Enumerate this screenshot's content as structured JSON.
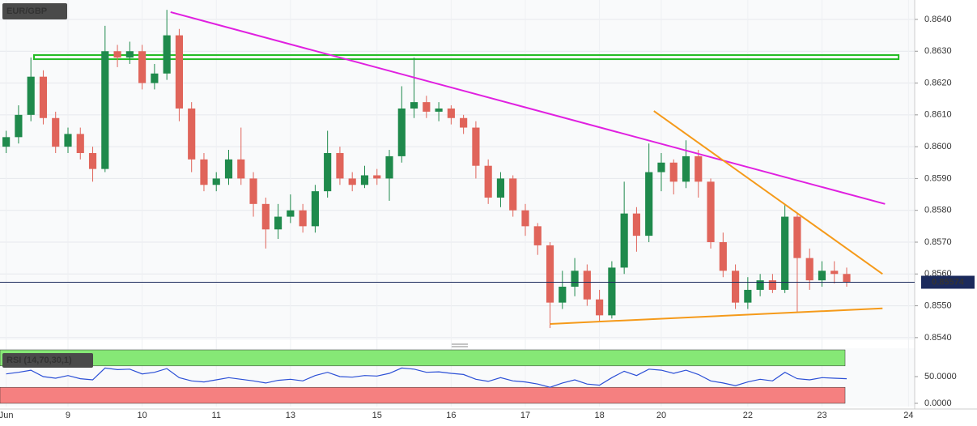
{
  "chart_data": {
    "type": "candlestick",
    "title": "EUR/GBP",
    "categories": [
      "Jun",
      null,
      null,
      null,
      null,
      "9",
      null,
      null,
      null,
      null,
      null,
      "10",
      null,
      null,
      null,
      null,
      null,
      "11",
      null,
      null,
      null,
      null,
      null,
      "13",
      null,
      null,
      null,
      null,
      null,
      null,
      "15",
      null,
      null,
      null,
      null,
      null,
      "16",
      null,
      null,
      null,
      null,
      null,
      "17",
      null,
      null,
      null,
      null,
      null,
      "18",
      null,
      null,
      null,
      null,
      "20",
      null,
      null,
      null,
      null,
      null,
      null,
      "22",
      null,
      null,
      null,
      null,
      null,
      "23",
      null,
      null,
      null,
      null,
      null,
      null,
      "24"
    ],
    "open": [
      0.86,
      0.8603,
      0.861,
      0.8622,
      0.8609,
      0.86,
      0.8604,
      0.8598,
      0.8593,
      0.863,
      0.8628,
      0.863,
      0.862,
      0.8623,
      0.8635,
      0.8612,
      0.8596,
      0.8588,
      0.859,
      0.8596,
      0.859,
      0.8582,
      0.8574,
      0.8578,
      0.858,
      0.8575,
      0.8586,
      0.8598,
      0.859,
      0.8588,
      0.8591,
      0.859,
      0.8597,
      0.8612,
      0.8614,
      0.8611,
      0.8612,
      0.8609,
      0.8606,
      0.8594,
      0.8584,
      0.859,
      0.858,
      0.8575,
      0.8569,
      0.8551,
      0.8556,
      0.8561,
      0.8552,
      0.8547,
      0.8562,
      0.8579,
      0.8572,
      0.8592,
      0.8595,
      0.8589,
      0.8597,
      0.8589,
      0.857,
      0.8561,
      0.8551,
      0.8555,
      0.8558,
      0.8555,
      0.8578,
      0.8565,
      0.8558,
      0.8561,
      0.856,
      null,
      null,
      null,
      null,
      null
    ],
    "high": [
      0.8605,
      0.8613,
      0.8628,
      0.8624,
      0.8611,
      0.8606,
      0.8606,
      0.86,
      0.8638,
      0.8632,
      0.8633,
      0.8632,
      0.8626,
      0.8643,
      0.8637,
      0.8614,
      0.8598,
      0.8592,
      0.8599,
      0.8606,
      0.8592,
      0.8584,
      0.8582,
      0.8585,
      0.8582,
      0.8588,
      0.8605,
      0.86,
      0.8592,
      0.8594,
      0.8593,
      0.8599,
      0.8619,
      0.8628,
      0.8616,
      0.8614,
      0.8613,
      0.861,
      0.8608,
      0.8596,
      0.8592,
      0.8591,
      0.8582,
      0.8576,
      0.857,
      0.8561,
      0.8565,
      0.8563,
      0.8555,
      0.8564,
      0.8589,
      0.8581,
      0.8601,
      0.8598,
      0.8596,
      0.8602,
      0.8599,
      0.859,
      0.8573,
      0.8563,
      0.8559,
      0.856,
      0.856,
      0.8582,
      0.8579,
      0.8568,
      0.8564,
      0.8564,
      0.8562,
      null,
      null,
      null,
      null,
      null
    ],
    "low": [
      0.8598,
      0.8601,
      0.8608,
      0.8607,
      0.8598,
      0.8598,
      0.8596,
      0.8589,
      0.8592,
      0.8625,
      0.8626,
      0.8618,
      0.8618,
      0.8621,
      0.8608,
      0.8592,
      0.8586,
      0.8586,
      0.8588,
      0.8588,
      0.8578,
      0.8568,
      0.8571,
      0.8576,
      0.8573,
      0.8573,
      0.8584,
      0.8588,
      0.8586,
      0.8587,
      0.8588,
      0.8583,
      0.8595,
      0.8609,
      0.8609,
      0.8608,
      0.8607,
      0.8604,
      0.859,
      0.8582,
      0.8581,
      0.8578,
      0.8572,
      0.8566,
      0.8543,
      0.8549,
      0.8553,
      0.855,
      0.8545,
      0.8546,
      0.856,
      0.8567,
      0.857,
      0.8586,
      0.8585,
      0.8587,
      0.8584,
      0.8568,
      0.8559,
      0.8549,
      0.8549,
      0.8553,
      0.8554,
      0.8554,
      0.8548,
      0.8555,
      0.8556,
      0.8557,
      0.8556,
      null,
      null,
      null,
      null,
      null
    ],
    "close": [
      0.8603,
      0.861,
      0.8622,
      0.8609,
      0.86,
      0.8604,
      0.8598,
      0.8593,
      0.863,
      0.8628,
      0.863,
      0.862,
      0.8623,
      0.8635,
      0.8612,
      0.8596,
      0.8588,
      0.859,
      0.8596,
      0.859,
      0.8582,
      0.8574,
      0.8578,
      0.858,
      0.8575,
      0.8586,
      0.8598,
      0.859,
      0.8588,
      0.8591,
      0.859,
      0.8597,
      0.8612,
      0.8614,
      0.8611,
      0.8612,
      0.8609,
      0.8606,
      0.8594,
      0.8584,
      0.859,
      0.858,
      0.8575,
      0.8569,
      0.8551,
      0.8556,
      0.8561,
      0.8552,
      0.8547,
      0.8562,
      0.8579,
      0.8572,
      0.8592,
      0.8595,
      0.8589,
      0.8597,
      0.8589,
      0.857,
      0.8561,
      0.8551,
      0.8555,
      0.8558,
      0.8555,
      0.8578,
      0.8565,
      0.8558,
      0.8561,
      0.856,
      0.85574,
      null,
      null,
      null,
      null,
      null
    ],
    "up_color": "#1f8a4c",
    "down_color": "#e0645a",
    "ylim": [
      0.85392,
      0.86461
    ],
    "yticks": [
      {
        "value": 0.864,
        "label": "0.8640"
      },
      {
        "value": 0.863,
        "label": "0.8630"
      },
      {
        "value": 0.862,
        "label": "0.8620"
      },
      {
        "value": 0.861,
        "label": "0.8610"
      },
      {
        "value": 0.86,
        "label": "0.8600"
      },
      {
        "value": 0.859,
        "label": "0.8590"
      },
      {
        "value": 0.858,
        "label": "0.8580"
      },
      {
        "value": 0.857,
        "label": "0.8570"
      },
      {
        "value": 0.856,
        "label": "0.8560"
      },
      {
        "value": 0.855,
        "label": "0.8550"
      },
      {
        "value": 0.854,
        "label": "0.8540"
      }
    ],
    "grid": true,
    "last_price": {
      "value": 0.85574,
      "color": "#1b2a5c"
    },
    "trendlines": [
      {
        "color": "#e020e0",
        "points": [
          [
            13.3,
            0.86423
          ],
          [
            71.1,
            0.8582
          ]
        ]
      },
      {
        "color": "#f59a1a",
        "points": [
          [
            52.4,
            0.86112
          ],
          [
            70.9,
            0.856
          ]
        ]
      },
      {
        "color": "#f59a1a",
        "points": [
          [
            44.0,
            0.85443
          ],
          [
            70.9,
            0.85492
          ]
        ]
      }
    ],
    "zone": {
      "color": "#22bb22",
      "x": [
        2.25,
        72.2
      ],
      "y": [
        0.86275,
        0.86288
      ]
    },
    "rsi": {
      "label": "RSI (14,70,30,1)",
      "color": "#2b4fd6",
      "values": [
        55,
        58,
        62,
        50,
        47,
        52,
        46,
        44,
        66,
        63,
        64,
        55,
        58,
        65,
        48,
        42,
        40,
        44,
        48,
        45,
        42,
        38,
        43,
        45,
        42,
        52,
        58,
        50,
        49,
        52,
        51,
        56,
        66,
        64,
        58,
        59,
        56,
        54,
        45,
        41,
        48,
        42,
        40,
        36,
        30,
        38,
        44,
        36,
        34,
        48,
        60,
        52,
        64,
        62,
        56,
        62,
        54,
        42,
        38,
        33,
        40,
        45,
        42,
        58,
        46,
        44,
        48,
        47,
        46,
        null,
        null,
        null,
        null,
        null
      ],
      "ylim": [
        0,
        100
      ],
      "yticks": [
        {
          "value": 50,
          "label": "50.0000"
        },
        {
          "value": 0,
          "label": "0.0000"
        }
      ],
      "upper": 70,
      "lower": 30,
      "upper_color": "#86e876",
      "lower_color": "#f58080"
    }
  }
}
